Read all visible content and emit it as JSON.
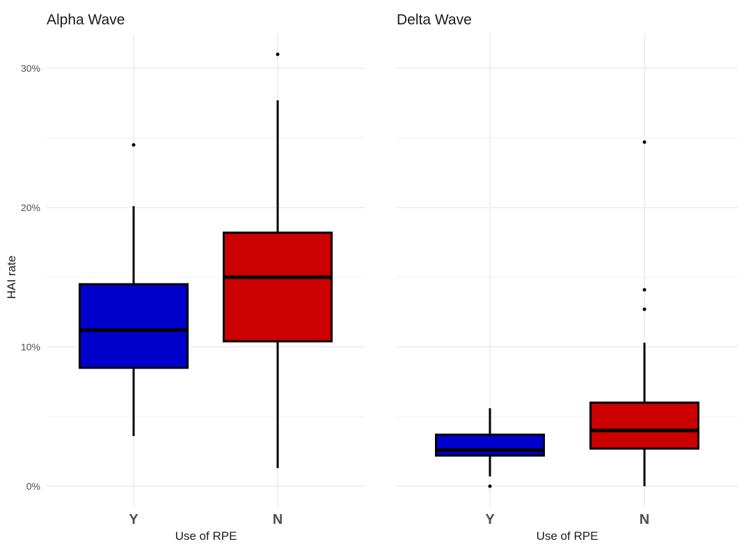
{
  "ylabel": "HAI rate",
  "chart_data": [
    {
      "type": "boxplot",
      "title": "Alpha Wave",
      "xlabel": "Use of RPE",
      "ylabel": "HAI rate",
      "ylim": [
        -0.015,
        0.325
      ],
      "yticks": [
        0,
        0.1,
        0.2,
        0.3
      ],
      "ytick_labels": [
        "0%",
        "10%",
        "20%",
        "30%"
      ],
      "categories": [
        "Y",
        "N"
      ],
      "grid": true,
      "boxes": [
        {
          "category": "Y",
          "color": "#0000CD",
          "min": 0.036,
          "q1": 0.085,
          "median": 0.112,
          "q3": 0.145,
          "max": 0.201,
          "outliers": [
            0.245
          ]
        },
        {
          "category": "N",
          "color": "#CC0000",
          "min": 0.013,
          "q1": 0.104,
          "median": 0.15,
          "q3": 0.182,
          "max": 0.277,
          "outliers": [
            0.31
          ]
        }
      ]
    },
    {
      "type": "boxplot",
      "title": "Delta Wave",
      "xlabel": "Use of RPE",
      "ylabel": "",
      "ylim": [
        -0.015,
        0.325
      ],
      "yticks": [
        0,
        0.1,
        0.2,
        0.3
      ],
      "categories": [
        "Y",
        "N"
      ],
      "grid": true,
      "boxes": [
        {
          "category": "Y",
          "color": "#0000CD",
          "min": 0.007,
          "q1": 0.022,
          "median": 0.026,
          "q3": 0.037,
          "max": 0.056,
          "outliers": [
            0.0
          ]
        },
        {
          "category": "N",
          "color": "#CC0000",
          "min": 0.0,
          "q1": 0.027,
          "median": 0.04,
          "q3": 0.06,
          "max": 0.103,
          "outliers": [
            0.127,
            0.141,
            0.247
          ]
        }
      ]
    }
  ]
}
